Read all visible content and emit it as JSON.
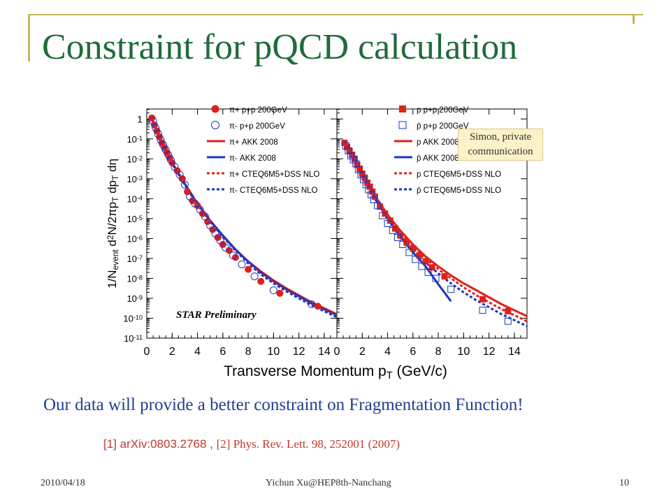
{
  "slide": {
    "title": "Constraint for pQCD calculation",
    "note_line1": "Simon, private",
    "note_line2": "communication",
    "statement": "Our data will provide a better constraint on Fragmentation Function!",
    "ref1": "[1] arXiv:0803.2768",
    "ref_sep": " , ",
    "ref2": "[2] Phys. Rev. Lett. 98, 252001 (2007)",
    "footer_date": "2010/04/18",
    "footer_author": "Yichun Xu@HEP8th-Nanchang",
    "page_number": "10",
    "accent_color": "#c8b45a",
    "title_color": "#1f6b3a",
    "text_color": "#1f3f8f",
    "ref_color": "#c0392b"
  },
  "chart_data": {
    "type": "scatter",
    "y_scale": "log",
    "ylim_exp": [
      -11,
      0.5
    ],
    "xlim": [
      0,
      15
    ],
    "y_tick_labels": [
      "1",
      "10-1",
      "10-2",
      "10-3",
      "10-4",
      "10-5",
      "10-6",
      "10-7",
      "10-8",
      "10-9",
      "10-10",
      "10-11"
    ],
    "y_tick_exps": [
      0,
      -1,
      -2,
      -3,
      -4,
      -5,
      -6,
      -7,
      -8,
      -9,
      -10,
      -11
    ],
    "x_ticks": [
      0,
      2,
      4,
      6,
      8,
      10,
      12,
      14
    ],
    "ylabel": "1/Nevent d2N/2πpT dpT dη",
    "xlabel": "Transverse Momentum pT (GeV/c)",
    "annotation": "STAR Preliminary",
    "panels": [
      {
        "legend": [
          {
            "label": "π+ p+p 200GeV",
            "marker": "filled-circle",
            "color": "#e0201a"
          },
          {
            "label": "π- p+p 200GeV",
            "marker": "open-circle",
            "color": "#1a35c0"
          },
          {
            "label": "π+ AKK 2008",
            "line": "solid",
            "color": "#e0201a"
          },
          {
            "label": "π- AKK 2008",
            "line": "solid",
            "color": "#1a35c0"
          },
          {
            "label": "π+ CTEQ6M5+DSS NLO",
            "line": "dashed",
            "color": "#e0201a"
          },
          {
            "label": "π- CTEQ6M5+DSS NLO",
            "line": "dashed",
            "color": "#1a35c0"
          }
        ],
        "series": [
          {
            "name": "π+ p+p 200GeV",
            "kind": "points",
            "marker": "filled-circle",
            "color": "#e0201a",
            "x": [
              0.4,
              0.6,
              0.8,
              1.0,
              1.2,
              1.4,
              1.6,
              1.8,
              2.0,
              2.4,
              2.8,
              3.2,
              3.6,
              4.0,
              4.4,
              4.8,
              5.2,
              5.6,
              6.0,
              6.5,
              7.0,
              8.0,
              9.0,
              10.5,
              13.5
            ],
            "y_exp": [
              0.05,
              -0.3,
              -0.6,
              -0.9,
              -1.2,
              -1.45,
              -1.7,
              -1.95,
              -2.2,
              -2.6,
              -3.0,
              -3.65,
              -4.1,
              -4.35,
              -4.75,
              -5.15,
              -5.55,
              -5.95,
              -6.3,
              -6.6,
              -6.95,
              -7.55,
              -8.15,
              -8.75,
              -9.4
            ]
          },
          {
            "name": "π- p+p 200GeV",
            "kind": "points",
            "marker": "open-circle",
            "color": "#1a35c0",
            "x": [
              0.5,
              0.7,
              0.9,
              1.1,
              1.3,
              1.5,
              1.7,
              1.9,
              2.2,
              2.6,
              3.0,
              3.4,
              3.8,
              4.2,
              4.6,
              5.0,
              5.4,
              5.8,
              6.2,
              6.8,
              7.5,
              8.5,
              10.0,
              13.0
            ],
            "y_exp": [
              -0.1,
              -0.45,
              -0.75,
              -1.05,
              -1.3,
              -1.55,
              -1.8,
              -2.05,
              -2.4,
              -2.8,
              -3.3,
              -3.9,
              -4.25,
              -4.55,
              -4.9,
              -5.35,
              -5.75,
              -6.1,
              -6.45,
              -6.85,
              -7.3,
              -7.9,
              -8.6,
              -9.3
            ]
          },
          {
            "name": "π+ AKK 2008",
            "kind": "line",
            "line": "solid",
            "color": "#e0201a",
            "x": [
              0.4,
              1.0,
              2.0,
              3.0,
              4.0,
              5.0,
              6.0,
              7.0,
              8.0,
              9.0,
              10.0,
              11.0,
              12.0,
              13.0,
              14.0,
              15.0
            ],
            "y_exp": [
              0.0,
              -0.95,
              -2.2,
              -3.25,
              -4.25,
              -5.1,
              -5.85,
              -6.55,
              -7.15,
              -7.65,
              -8.1,
              -8.5,
              -8.85,
              -9.2,
              -9.5,
              -9.8
            ]
          },
          {
            "name": "π- AKK 2008",
            "kind": "line",
            "line": "solid",
            "color": "#1a35c0",
            "x": [
              0.4,
              1.0,
              2.0,
              3.0,
              4.0,
              5.0,
              6.0,
              7.0,
              8.0,
              9.0,
              10.0,
              11.0,
              12.0,
              13.0,
              14.0,
              15.0
            ],
            "y_exp": [
              0.0,
              -0.95,
              -2.2,
              -3.25,
              -4.25,
              -5.1,
              -5.85,
              -6.55,
              -7.15,
              -7.7,
              -8.15,
              -8.55,
              -8.9,
              -9.25,
              -9.55,
              -9.85
            ]
          },
          {
            "name": "π+ CTEQ6M5+DSS NLO",
            "kind": "line",
            "line": "dashed",
            "color": "#e0201a",
            "x": [
              1.0,
              2.0,
              3.0,
              4.0,
              5.0,
              6.0,
              7.0,
              8.0,
              9.0,
              10.0,
              11.0,
              12.0,
              13.0,
              14.0,
              15.0
            ],
            "y_exp": [
              -1.0,
              -2.25,
              -3.3,
              -4.3,
              -5.15,
              -5.9,
              -6.6,
              -7.2,
              -7.75,
              -8.2,
              -8.6,
              -8.95,
              -9.3,
              -9.6,
              -9.9
            ]
          },
          {
            "name": "π- CTEQ6M5+DSS NLO",
            "kind": "line",
            "line": "dashed",
            "color": "#1a35c0",
            "x": [
              1.0,
              2.0,
              3.0,
              4.0,
              5.0,
              6.0,
              7.0,
              8.0,
              9.0,
              10.0,
              11.0,
              12.0,
              13.0,
              14.0,
              15.0
            ],
            "y_exp": [
              -1.0,
              -2.25,
              -3.3,
              -4.3,
              -5.15,
              -5.9,
              -6.6,
              -7.25,
              -7.8,
              -8.25,
              -8.65,
              -9.0,
              -9.35,
              -9.65,
              -9.95
            ]
          }
        ]
      },
      {
        "legend": [
          {
            "label": "p p+p 200GeV",
            "marker": "filled-square",
            "color": "#e0201a"
          },
          {
            "label": "p̄ p+p 200GeV",
            "marker": "open-square",
            "color": "#1a35c0"
          },
          {
            "label": "p AKK 2008",
            "line": "solid",
            "color": "#e0201a"
          },
          {
            "label": "p̄ AKK 2008",
            "line": "solid",
            "color": "#1a35c0"
          },
          {
            "label": "p CTEQ6M5+DSS NLO",
            "line": "dashed",
            "color": "#e0201a"
          },
          {
            "label": "p̄ CTEQ6M5+DSS NLO",
            "line": "dashed",
            "color": "#1a35c0"
          }
        ],
        "series": [
          {
            "name": "p p+p 200GeV",
            "kind": "points",
            "marker": "filled-square",
            "color": "#e0201a",
            "x": [
              0.6,
              0.8,
              1.0,
              1.2,
              1.4,
              1.6,
              1.8,
              2.0,
              2.2,
              2.4,
              2.6,
              2.8,
              3.0,
              3.4,
              3.8,
              4.2,
              4.6,
              5.0,
              5.5,
              6.0,
              6.5,
              7.0,
              7.5,
              8.5,
              11.5,
              13.5
            ],
            "y_exp": [
              -1.2,
              -1.4,
              -1.6,
              -1.8,
              -2.0,
              -2.3,
              -2.5,
              -2.75,
              -2.95,
              -3.2,
              -3.4,
              -3.65,
              -3.9,
              -4.4,
              -4.75,
              -5.1,
              -5.5,
              -5.85,
              -6.2,
              -6.5,
              -6.85,
              -7.15,
              -7.45,
              -7.9,
              -9.05,
              -9.65
            ]
          },
          {
            "name": "p̄ p+p 200GeV",
            "kind": "points",
            "marker": "open-square",
            "color": "#1a35c0",
            "x": [
              0.7,
              0.9,
              1.1,
              1.3,
              1.5,
              1.7,
              1.9,
              2.1,
              2.3,
              2.5,
              2.7,
              2.9,
              3.2,
              3.6,
              4.0,
              4.4,
              4.8,
              5.2,
              5.7,
              6.2,
              6.7,
              7.2,
              7.8,
              9.0,
              11.5,
              13.5
            ],
            "y_exp": [
              -1.35,
              -1.6,
              -1.85,
              -2.05,
              -2.25,
              -2.55,
              -2.8,
              -3.05,
              -3.3,
              -3.55,
              -3.8,
              -4.05,
              -4.35,
              -4.85,
              -5.25,
              -5.6,
              -5.95,
              -6.3,
              -6.7,
              -7.05,
              -7.4,
              -7.7,
              -8.0,
              -8.55,
              -9.6,
              -10.15
            ]
          },
          {
            "name": "p AKK 2008",
            "kind": "line",
            "line": "solid",
            "color": "#e0201a",
            "x": [
              0.5,
              1.0,
              2.0,
              3.0,
              4.0,
              5.0,
              6.0,
              7.0,
              8.0,
              9.0,
              10.0,
              11.0,
              12.0,
              13.0,
              14.0,
              15.0
            ],
            "y_exp": [
              -1.1,
              -1.55,
              -2.7,
              -3.85,
              -4.8,
              -5.6,
              -6.3,
              -6.9,
              -7.4,
              -7.85,
              -8.25,
              -8.6,
              -8.95,
              -9.3,
              -9.6,
              -9.9
            ]
          },
          {
            "name": "p̄ AKK 2008",
            "kind": "line",
            "line": "solid",
            "color": "#1a35c0",
            "x": [
              0.5,
              1.0,
              2.0,
              3.0,
              4.0,
              5.0,
              6.0,
              7.0,
              8.0,
              9.0
            ],
            "y_exp": [
              -1.15,
              -1.6,
              -2.8,
              -4.0,
              -5.0,
              -5.9,
              -6.7,
              -7.4,
              -8.3,
              -9.15
            ]
          },
          {
            "name": "p CTEQ6M5+DSS NLO",
            "kind": "line",
            "line": "dashed",
            "color": "#e0201a",
            "x": [
              1.0,
              2.0,
              3.0,
              4.0,
              5.0,
              6.0,
              7.0,
              8.0,
              9.0,
              10.0,
              11.0,
              12.0,
              13.0,
              14.0,
              15.0
            ],
            "y_exp": [
              -1.6,
              -2.75,
              -3.9,
              -4.9,
              -5.7,
              -6.4,
              -7.0,
              -7.55,
              -8.0,
              -8.45,
              -8.85,
              -9.2,
              -9.55,
              -9.85,
              -10.15
            ]
          },
          {
            "name": "p̄ CTEQ6M5+DSS NLO",
            "kind": "line",
            "line": "dashed",
            "color": "#1a35c0",
            "x": [
              1.0,
              2.0,
              3.0,
              4.0,
              5.0,
              6.0,
              7.0,
              8.0,
              9.0,
              10.0,
              11.0,
              12.0,
              13.0,
              14.0,
              15.0
            ],
            "y_exp": [
              -1.65,
              -2.85,
              -4.0,
              -5.0,
              -5.85,
              -6.6,
              -7.2,
              -7.75,
              -8.25,
              -8.7,
              -9.1,
              -9.45,
              -9.8,
              -10.1,
              -10.4
            ]
          }
        ]
      }
    ]
  }
}
